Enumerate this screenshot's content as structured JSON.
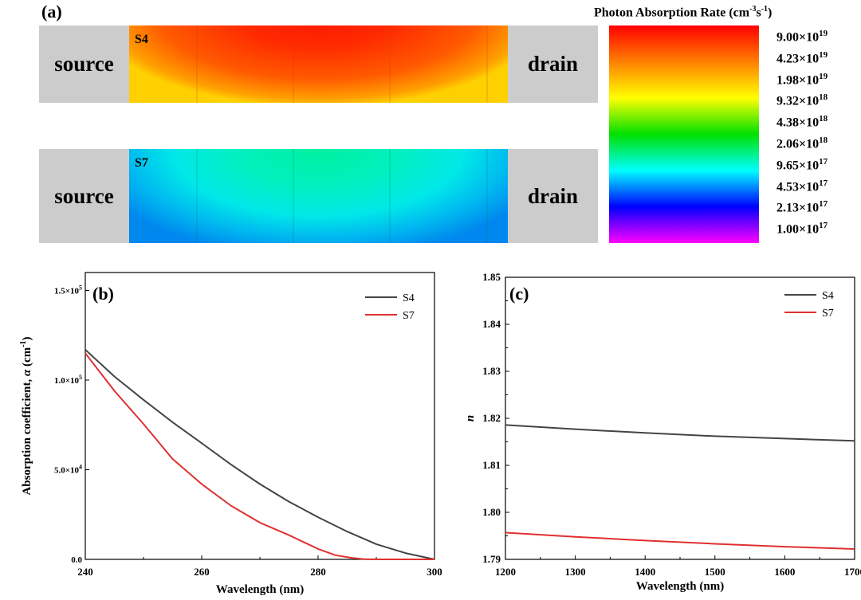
{
  "panel_a": {
    "label": "(a)",
    "devices": [
      {
        "tag": "S4",
        "source": "source",
        "drain": "drain"
      },
      {
        "tag": "S7",
        "source": "source",
        "drain": "drain"
      }
    ],
    "colorbar": {
      "title_main": "Photon Absorption Rate (cm",
      "title_exp1": "-3",
      "title_mid": "s",
      "title_exp2": "-1",
      "title_end": ")",
      "labels": [
        {
          "mant": "9.00×10",
          "exp": "19"
        },
        {
          "mant": "4.23×10",
          "exp": "19"
        },
        {
          "mant": "1.98×10",
          "exp": "19"
        },
        {
          "mant": "9.32×10",
          "exp": "18"
        },
        {
          "mant": "4.38×10",
          "exp": "18"
        },
        {
          "mant": "2.06×10",
          "exp": "18"
        },
        {
          "mant": "9.65×10",
          "exp": "17"
        },
        {
          "mant": "4.53×10",
          "exp": "17"
        },
        {
          "mant": "2.13×10",
          "exp": "17"
        },
        {
          "mant": "1.00×10",
          "exp": "17"
        }
      ],
      "colors": [
        "#ff0000",
        "#ff8000",
        "#ffff00",
        "#00e000",
        "#00ffff",
        "#0000ff",
        "#ff00ff"
      ]
    }
  },
  "chart_data": [
    {
      "type": "line",
      "panel": "(b)",
      "xlabel": "Wavelength (nm)",
      "ylabel_main": "Absorption coefficient, ",
      "ylabel_greek": "α",
      "ylabel_unit": " (cm",
      "ylabel_exp": "-1",
      "ylabel_end": ")",
      "xlim": [
        240,
        300
      ],
      "ylim": [
        0,
        160000
      ],
      "xticks": [
        "240",
        "260",
        "280",
        "300"
      ],
      "yticks": [
        {
          "value": 0,
          "mant": "0.0",
          "exp": ""
        },
        {
          "value": 50000,
          "mant": "5.0×10",
          "exp": "4"
        },
        {
          "value": 100000,
          "mant": "1.0×10",
          "exp": "5"
        },
        {
          "value": 150000,
          "mant": "1.5×10",
          "exp": "5"
        }
      ],
      "series": [
        {
          "name": "S4",
          "color": "#444444",
          "x": [
            240,
            245,
            250,
            255,
            260,
            265,
            270,
            275,
            280,
            285,
            290,
            295,
            300
          ],
          "y": [
            117000,
            102000,
            89000,
            76500,
            64800,
            53000,
            42000,
            32200,
            23500,
            15500,
            8500,
            3500,
            0
          ]
        },
        {
          "name": "S7",
          "color": "#e03030",
          "x": [
            240,
            245,
            250,
            255,
            260,
            265,
            270,
            275,
            280,
            283,
            286,
            288,
            290,
            300
          ],
          "y": [
            115000,
            94000,
            75500,
            56000,
            42000,
            30000,
            20500,
            13500,
            5800,
            2300,
            700,
            150,
            0,
            0
          ]
        }
      ]
    },
    {
      "type": "line",
      "panel": "(c)",
      "xlabel": "Wavelength (nm)",
      "ylabel": "n",
      "xlim": [
        1200,
        1700
      ],
      "ylim": [
        1.79,
        1.85
      ],
      "xticks": [
        "1200",
        "1300",
        "1400",
        "1500",
        "1600",
        "1700"
      ],
      "yticks": [
        "1.79",
        "1.80",
        "1.81",
        "1.82",
        "1.83",
        "1.84",
        "1.85"
      ],
      "series": [
        {
          "name": "S4",
          "color": "#444444",
          "x": [
            1200,
            1300,
            1400,
            1500,
            1600,
            1700
          ],
          "y": [
            1.8186,
            1.8177,
            1.8169,
            1.8162,
            1.8157,
            1.8152
          ]
        },
        {
          "name": "S7",
          "color": "#e03030",
          "x": [
            1200,
            1300,
            1400,
            1500,
            1600,
            1700
          ],
          "y": [
            1.7957,
            1.7948,
            1.794,
            1.7933,
            1.7927,
            1.7922
          ]
        }
      ]
    }
  ]
}
